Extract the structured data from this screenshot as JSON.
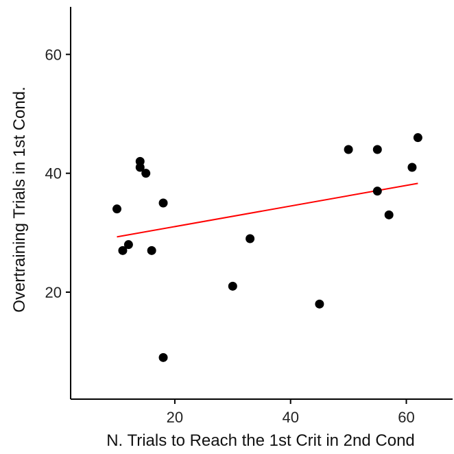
{
  "chart_data": {
    "type": "scatter",
    "title": "",
    "xlabel": "N. Trials to Reach the 1st Crit in 2nd Cond",
    "ylabel": "Overtraining Trials in 1st Cond.",
    "xlim": [
      2,
      68
    ],
    "ylim": [
      2,
      68
    ],
    "xticks": [
      20,
      40,
      60
    ],
    "yticks": [
      20,
      40,
      60
    ],
    "grid": false,
    "legend": "none",
    "point_color": "#000000",
    "trend_color": "#ff0000",
    "series": [
      {
        "points": [
          {
            "x": 10,
            "y": 34
          },
          {
            "x": 11,
            "y": 27
          },
          {
            "x": 12,
            "y": 28
          },
          {
            "x": 14,
            "y": 42
          },
          {
            "x": 14,
            "y": 41
          },
          {
            "x": 15,
            "y": 40
          },
          {
            "x": 16,
            "y": 27
          },
          {
            "x": 18,
            "y": 35
          },
          {
            "x": 18,
            "y": 9
          },
          {
            "x": 30,
            "y": 21
          },
          {
            "x": 33,
            "y": 29
          },
          {
            "x": 45,
            "y": 18
          },
          {
            "x": 50,
            "y": 44
          },
          {
            "x": 55,
            "y": 44
          },
          {
            "x": 55,
            "y": 37
          },
          {
            "x": 57,
            "y": 33
          },
          {
            "x": 61,
            "y": 41
          },
          {
            "x": 62,
            "y": 46
          }
        ]
      }
    ],
    "trend_line": {
      "x": [
        10,
        62
      ],
      "y": [
        29.3,
        38.3
      ]
    }
  }
}
